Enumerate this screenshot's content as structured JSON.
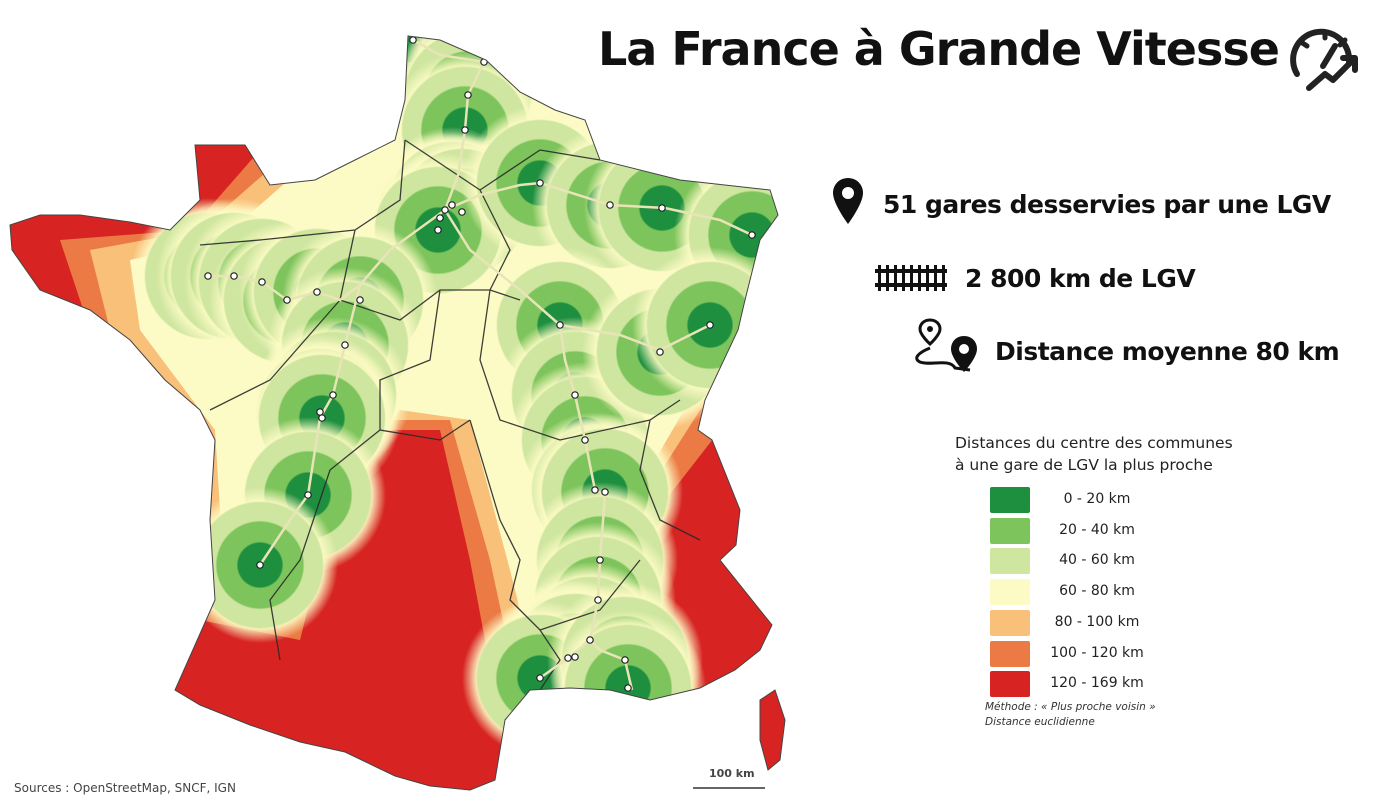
{
  "title": "La France à Grande Vitesse",
  "icons": {
    "title_icon": "speedometer-arrow-icon",
    "stat1_icon": "map-pin-icon",
    "stat2_icon": "railway-track-icon",
    "stat3_icon": "route-pin-icon"
  },
  "stats": [
    {
      "text": "51 gares desservies par une LGV"
    },
    {
      "text": "2 800 km de LGV"
    },
    {
      "text": "Distance moyenne 80 km"
    }
  ],
  "legend": {
    "title_line1": "Distances du centre des communes",
    "title_line2": "à une gare de LGV la plus proche",
    "classes": [
      {
        "label": "0 - 20 km",
        "color": "#1e8f3f"
      },
      {
        "label": "20 - 40 km",
        "color": "#7ec45c"
      },
      {
        "label": "40 - 60 km",
        "color": "#cfe6a0"
      },
      {
        "label": "60 - 80 km",
        "color": "#fdfbc5"
      },
      {
        "label": "80 - 100 km",
        "color": "#f9c07a"
      },
      {
        "label": "100 - 120 km",
        "color": "#ec7a45"
      },
      {
        "label": "120 - 169 km",
        "color": "#d72423"
      }
    ],
    "method_line1": "Méthode : « Plus proche voisin »",
    "method_line2": "Distance euclidienne"
  },
  "sources": "Sources : OpenStreetMap, SNCF, IGN",
  "scale_label": "100 km",
  "colors": {
    "lgv_line": "#e8e4b8",
    "border": "#2a2a2a",
    "station_fill": "#ffffff"
  }
}
